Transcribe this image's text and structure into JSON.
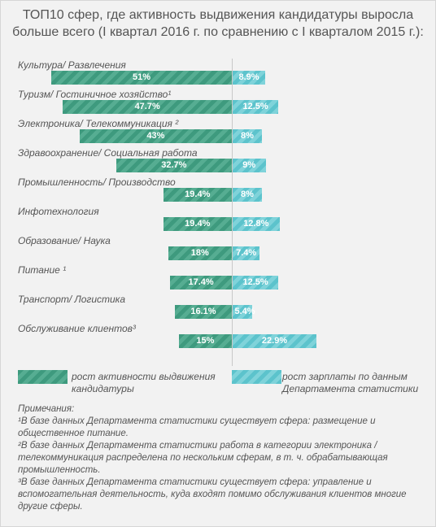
{
  "title": "ТОП10 сфер, где активность выдвижения кандидатуры выросла больше всего (I квартал 2016 г. по сравнению с I кварталом 2015 г.):",
  "colors": {
    "left": "#3e9a7e",
    "right": "#5cc3cc"
  },
  "chart_data": {
    "type": "bar",
    "orientation": "horizontal-diverging",
    "title": "ТОП10 сфер, где активность выдвижения кандидатуры выросла больше всего (I квартал 2016 г. по сравнению с I кварталом 2015 г.):",
    "categories": [
      "Культура/ Развлечения",
      "Туризм/ Гостиничное хозяйство¹",
      "Электроника/ Телекоммуникация ²",
      "Здравоохранение/ Социальная работа",
      "Промышленность/ Производство",
      "Инфотехнология",
      "Образование/ Наука",
      "Питание ¹",
      "Транспорт/ Логистика",
      "Обслуживание клиентов³"
    ],
    "series": [
      {
        "name": "рост активности выдвижения кандидатуры",
        "values": [
          51,
          47.7,
          43,
          32.7,
          19.4,
          19.4,
          18,
          17.4,
          16.1,
          15
        ],
        "labels": [
          "51%",
          "47.7%",
          "43%",
          "32.7%",
          "19.4%",
          "19.4%",
          "18%",
          "17.4%",
          "16.1%",
          "15%"
        ]
      },
      {
        "name": "рост зарплаты по данным Департамента статистики",
        "values": [
          8.9,
          12.5,
          8,
          9,
          8,
          12.8,
          7.4,
          12.5,
          5.4,
          22.9
        ],
        "labels": [
          "8.9%",
          "12.5%",
          "8%",
          "9%",
          "8%",
          "12.8%",
          "7.4%",
          "12.5%",
          "5.4%",
          "22.9%"
        ]
      }
    ],
    "legend": "bottom"
  },
  "legend": {
    "left_label": "рост активности выдвижения кандидатуры",
    "right_label": "рост зарплаты по данным Департамента статистики"
  },
  "notes": {
    "heading": "Примечания:",
    "note1": "¹В базе данных Департамента статистики существует сфера: размещение и общественное питание.",
    "note2": "²В базе данных Департамента статистики работа в категории электроника / телекоммуникация распределена по нескольким сферам, в т. ч. обрабатывающая промышленность.",
    "note3": "³В базе данных Департамента статистики существует сфера: управление и вспомогательная деятельность, куда входят помимо обслуживания клиентов многие другие сферы."
  }
}
